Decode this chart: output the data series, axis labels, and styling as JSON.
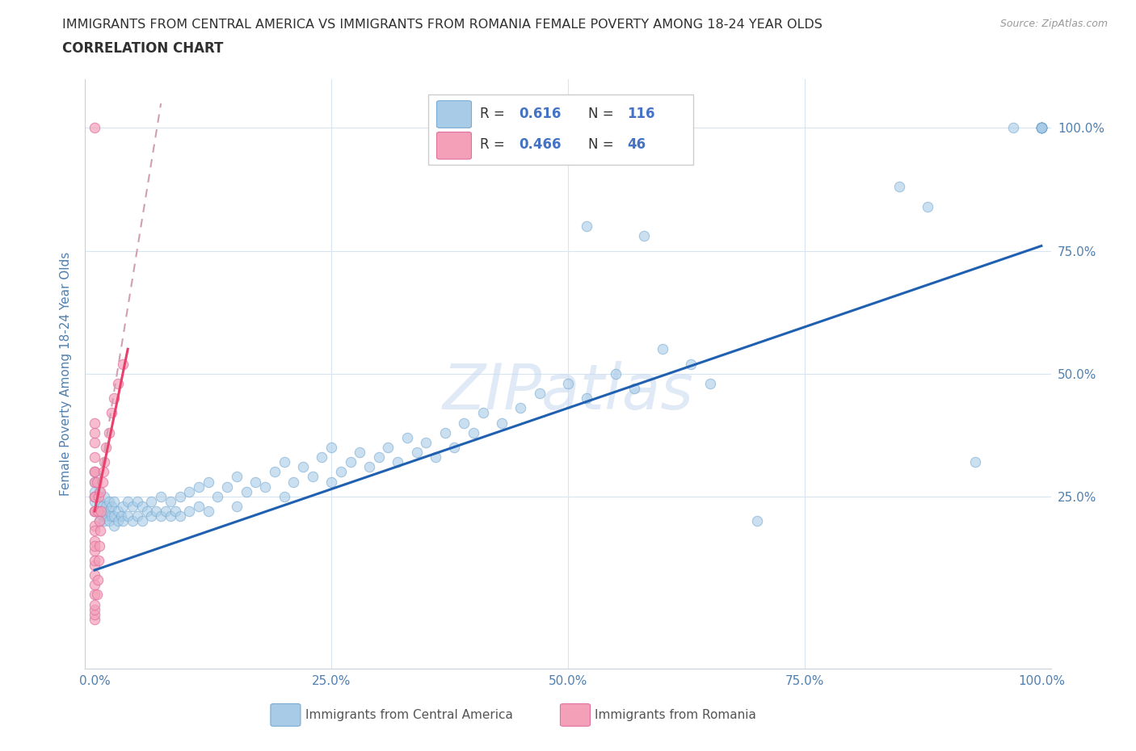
{
  "title_line1": "IMMIGRANTS FROM CENTRAL AMERICA VS IMMIGRANTS FROM ROMANIA FEMALE POVERTY AMONG 18-24 YEAR OLDS",
  "title_line2": "CORRELATION CHART",
  "source_text": "Source: ZipAtlas.com",
  "ylabel": "Female Poverty Among 18-24 Year Olds",
  "blue_R": 0.616,
  "blue_N": 116,
  "pink_R": 0.466,
  "pink_N": 46,
  "blue_color": "#A8CCE8",
  "blue_edge_color": "#7AAAD0",
  "pink_color": "#F4A0B8",
  "pink_edge_color": "#E070A0",
  "blue_line_color": "#2060B0",
  "pink_line_color": "#E8406A",
  "pink_dash_color": "#D0A0B0",
  "watermark_color": "#C8D8F0",
  "grid_color": "#D8E4F0",
  "background_color": "#FFFFFF",
  "title_color": "#303030",
  "axis_label_color": "#5080B0",
  "tick_label_color": "#5080B0",
  "legend_text_color": "#333333",
  "legend_value_color": "#4472C4",
  "blue_regr": [
    0.0,
    1.0,
    0.1,
    0.76
  ],
  "pink_regr_solid": [
    0.0,
    0.035,
    0.22,
    0.55
  ],
  "pink_regr_dash": [
    0.0,
    0.07,
    0.22,
    1.05
  ],
  "blue_scatter_x": [
    0.0,
    0.0,
    0.0,
    0.0,
    0.0,
    0.0,
    0.005,
    0.005,
    0.005,
    0.005,
    0.008,
    0.008,
    0.01,
    0.01,
    0.01,
    0.012,
    0.012,
    0.015,
    0.015,
    0.015,
    0.018,
    0.018,
    0.02,
    0.02,
    0.02,
    0.025,
    0.025,
    0.028,
    0.03,
    0.03,
    0.035,
    0.035,
    0.04,
    0.04,
    0.045,
    0.045,
    0.05,
    0.05,
    0.055,
    0.06,
    0.06,
    0.065,
    0.07,
    0.07,
    0.075,
    0.08,
    0.08,
    0.085,
    0.09,
    0.09,
    0.1,
    0.1,
    0.11,
    0.11,
    0.12,
    0.12,
    0.13,
    0.14,
    0.15,
    0.15,
    0.16,
    0.17,
    0.18,
    0.19,
    0.2,
    0.2,
    0.21,
    0.22,
    0.23,
    0.24,
    0.25,
    0.25,
    0.26,
    0.27,
    0.28,
    0.29,
    0.3,
    0.31,
    0.32,
    0.33,
    0.34,
    0.35,
    0.36,
    0.37,
    0.38,
    0.39,
    0.4,
    0.41,
    0.43,
    0.45,
    0.47,
    0.5,
    0.52,
    0.55,
    0.57,
    0.6,
    0.63,
    0.65,
    0.7,
    0.52,
    0.58,
    0.85,
    0.88,
    0.93,
    0.97,
    1.0,
    1.0,
    1.0,
    1.0,
    1.0,
    1.0,
    1.0,
    1.0,
    1.0,
    1.0,
    1.0
  ],
  "blue_scatter_y": [
    0.22,
    0.24,
    0.25,
    0.26,
    0.28,
    0.3,
    0.2,
    0.22,
    0.24,
    0.26,
    0.21,
    0.23,
    0.2,
    0.22,
    0.25,
    0.21,
    0.23,
    0.2,
    0.22,
    0.24,
    0.21,
    0.23,
    0.19,
    0.21,
    0.24,
    0.2,
    0.22,
    0.21,
    0.2,
    0.23,
    0.21,
    0.24,
    0.2,
    0.23,
    0.21,
    0.24,
    0.2,
    0.23,
    0.22,
    0.21,
    0.24,
    0.22,
    0.21,
    0.25,
    0.22,
    0.21,
    0.24,
    0.22,
    0.21,
    0.25,
    0.22,
    0.26,
    0.23,
    0.27,
    0.22,
    0.28,
    0.25,
    0.27,
    0.23,
    0.29,
    0.26,
    0.28,
    0.27,
    0.3,
    0.25,
    0.32,
    0.28,
    0.31,
    0.29,
    0.33,
    0.28,
    0.35,
    0.3,
    0.32,
    0.34,
    0.31,
    0.33,
    0.35,
    0.32,
    0.37,
    0.34,
    0.36,
    0.33,
    0.38,
    0.35,
    0.4,
    0.38,
    0.42,
    0.4,
    0.43,
    0.46,
    0.48,
    0.45,
    0.5,
    0.47,
    0.55,
    0.52,
    0.48,
    0.2,
    0.8,
    0.78,
    0.88,
    0.84,
    0.32,
    1.0,
    1.0,
    1.0,
    1.0,
    1.0,
    1.0,
    1.0,
    1.0,
    1.0,
    1.0,
    1.0,
    1.0
  ],
  "pink_scatter_x": [
    0.0,
    0.0,
    0.0,
    0.0,
    0.0,
    0.0,
    0.0,
    0.0,
    0.0,
    0.0,
    0.0,
    0.0,
    0.0,
    0.0,
    0.0,
    0.0,
    0.0,
    0.0,
    0.0,
    0.0,
    0.0,
    0.0,
    0.0,
    0.0,
    0.0,
    0.0,
    0.002,
    0.002,
    0.003,
    0.003,
    0.004,
    0.004,
    0.005,
    0.005,
    0.006,
    0.006,
    0.007,
    0.008,
    0.009,
    0.01,
    0.012,
    0.015,
    0.018,
    0.02,
    0.025,
    0.03
  ],
  "pink_scatter_y": [
    0.0,
    0.01,
    0.02,
    0.03,
    0.05,
    0.07,
    0.09,
    0.11,
    0.14,
    0.16,
    0.19,
    0.22,
    0.25,
    0.28,
    0.3,
    0.33,
    0.36,
    0.38,
    0.4,
    0.3,
    0.25,
    0.22,
    0.18,
    0.15,
    0.12,
    1.0,
    0.05,
    0.28,
    0.08,
    0.22,
    0.12,
    0.25,
    0.15,
    0.2,
    0.18,
    0.26,
    0.22,
    0.28,
    0.3,
    0.32,
    0.35,
    0.38,
    0.42,
    0.45,
    0.48,
    0.52
  ]
}
